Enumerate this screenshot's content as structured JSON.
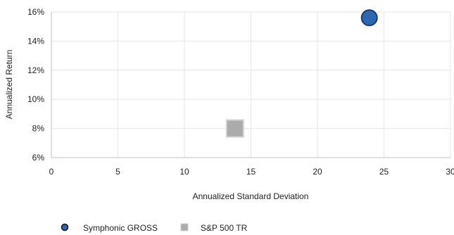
{
  "chart_data": {
    "type": "scatter",
    "title": "",
    "xlabel": "Annualized Standard Deviation",
    "ylabel": "Annualized Return",
    "xlim": [
      0,
      30
    ],
    "ylim": [
      6,
      16
    ],
    "x_ticks": [
      0,
      5,
      10,
      15,
      20,
      25,
      30
    ],
    "x_tick_labels": [
      "0",
      "5",
      "10",
      "15",
      "20",
      "25",
      "30"
    ],
    "y_ticks": [
      6,
      8,
      10,
      12,
      14,
      16
    ],
    "y_tick_labels": [
      "6%",
      "8%",
      "10%",
      "12%",
      "14%",
      "16%"
    ],
    "grid": true,
    "legend_position": "bottom-left",
    "series": [
      {
        "name": "Symphonic GROSS",
        "marker": "circle",
        "color": "#2e67b1",
        "edge_color": "#1a3d6e",
        "points": [
          {
            "x": 23.9,
            "y": 15.6
          }
        ]
      },
      {
        "name": "S&P 500 TR",
        "marker": "square",
        "color": "#ababab",
        "edge_color": "#d2d2d2",
        "points": [
          {
            "x": 13.8,
            "y": 8.0
          }
        ]
      }
    ]
  }
}
